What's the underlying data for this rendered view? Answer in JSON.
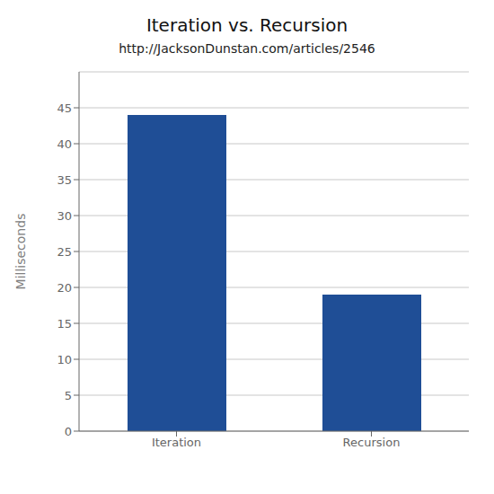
{
  "chart_data": {
    "type": "bar",
    "title": "Iteration vs. Recursion",
    "subtitle": "http://JacksonDunstan.com/articles/2546",
    "categories": [
      "Iteration",
      "Recursion"
    ],
    "values": [
      44,
      19
    ],
    "color": "#1f4e96",
    "ylabel": "Milliseconds",
    "ylim": [
      0,
      50
    ],
    "yticks": [
      0,
      5,
      10,
      15,
      20,
      25,
      30,
      35,
      40,
      45
    ],
    "grid": true
  }
}
